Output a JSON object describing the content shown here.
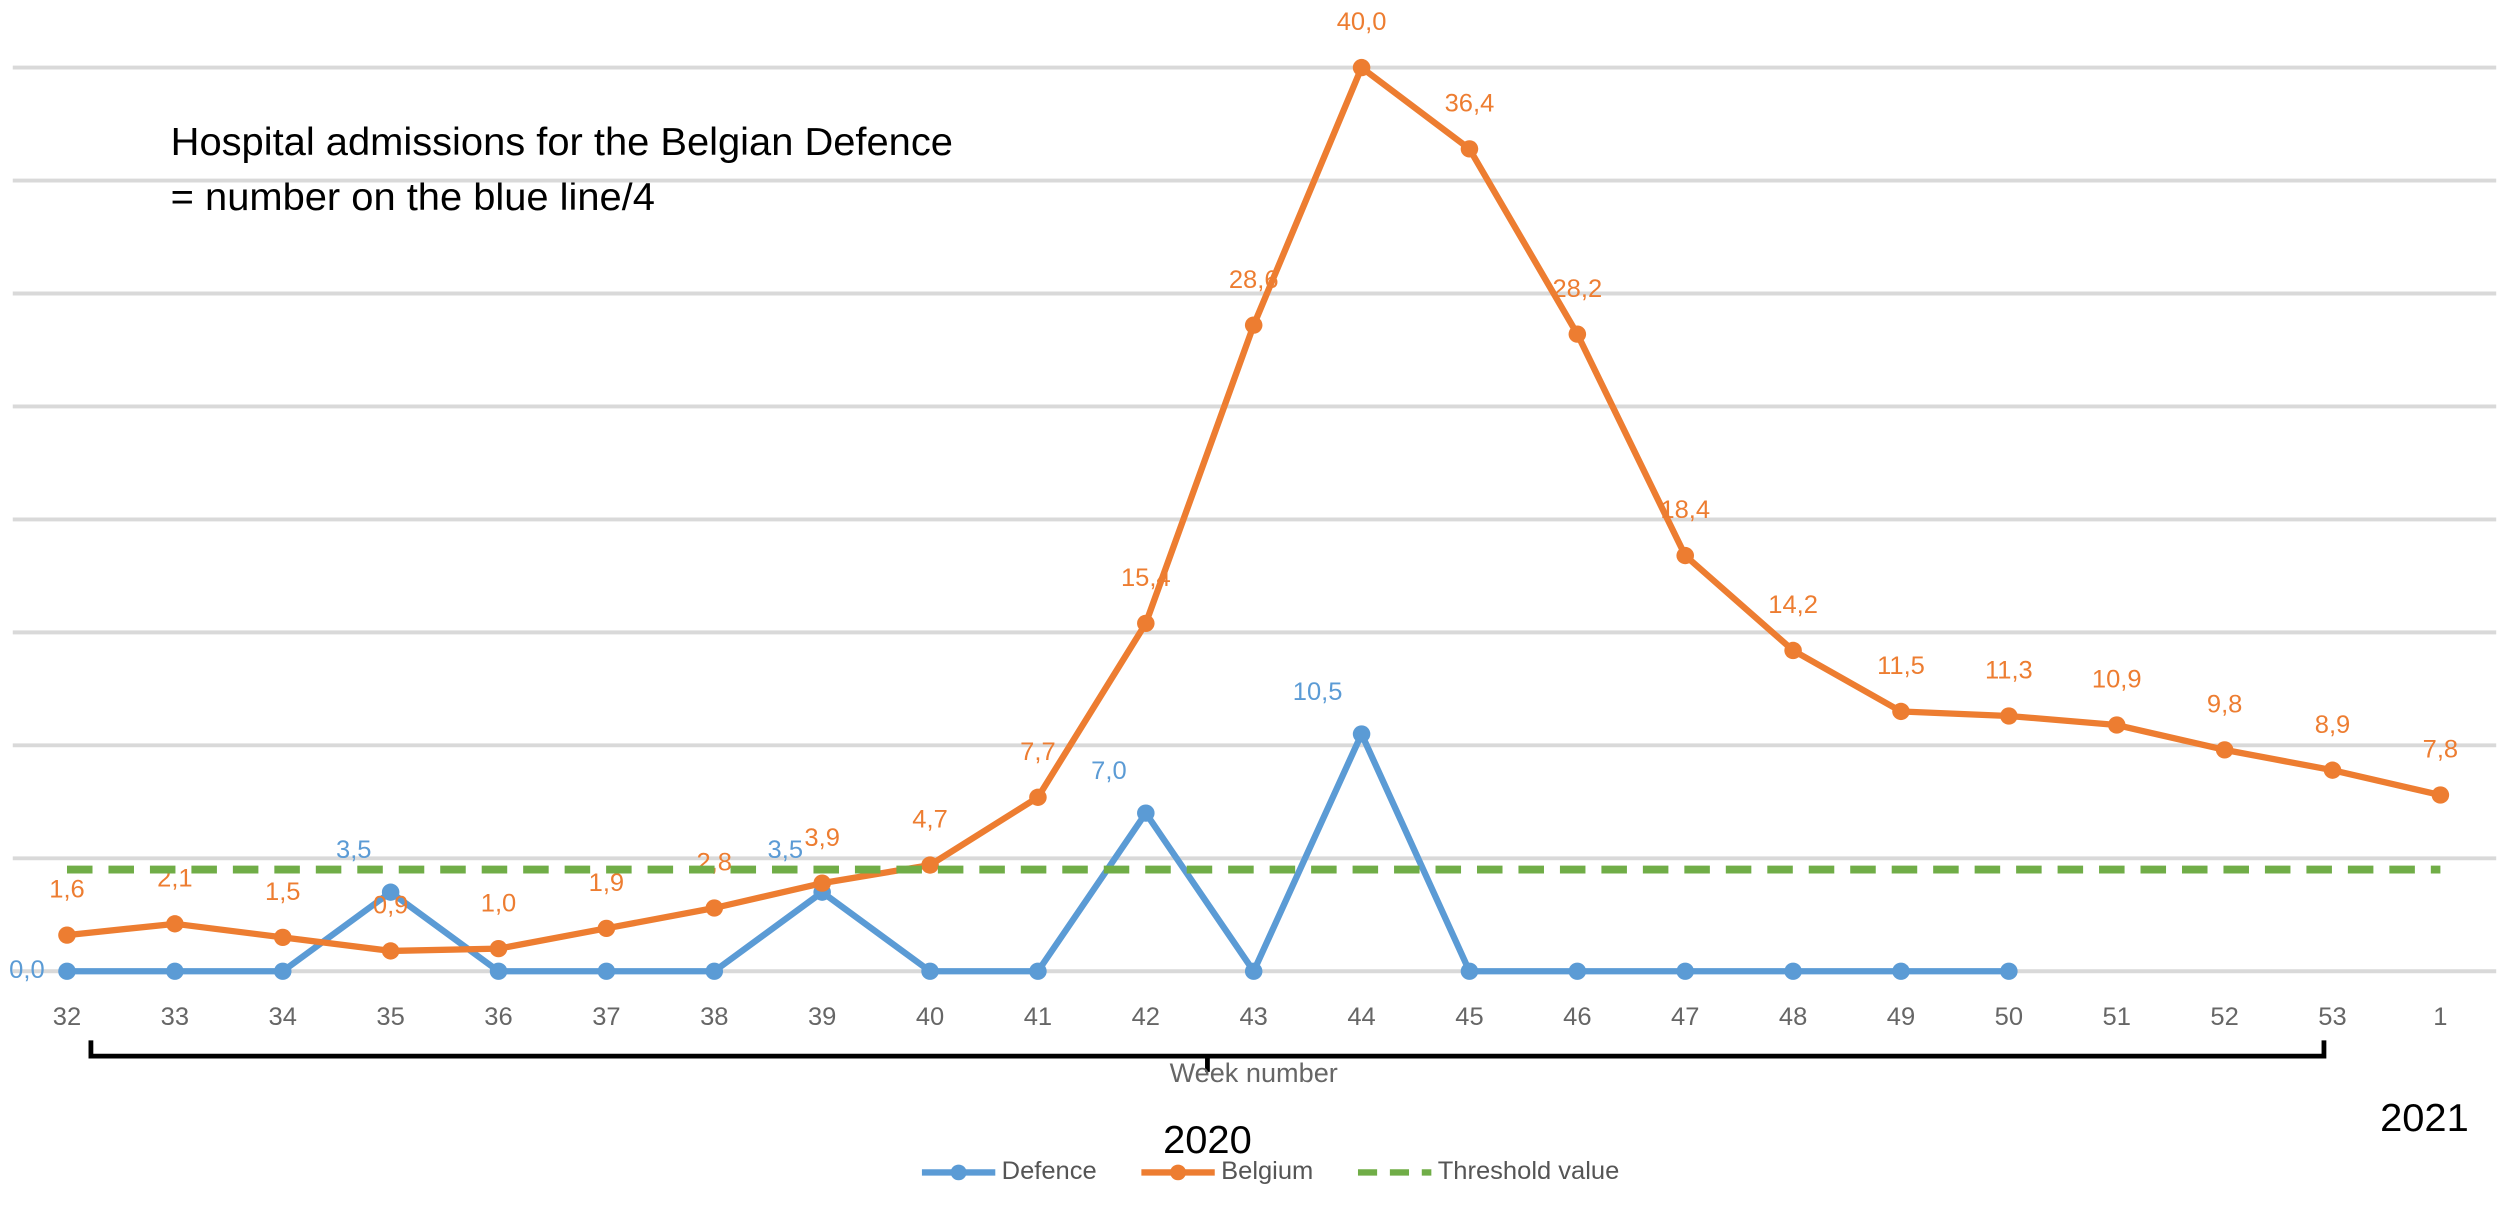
{
  "chart_data": {
    "type": "line",
    "annotations": [
      "Hospital admissions for the Belgian Defence",
      "= number on the blue line/4",
      "2020",
      "2021"
    ],
    "x_label": "Week number",
    "categories": [
      "32",
      "33",
      "34",
      "35",
      "36",
      "37",
      "38",
      "39",
      "40",
      "41",
      "42",
      "43",
      "44",
      "45",
      "46",
      "47",
      "48",
      "49",
      "50",
      "51",
      "52",
      "53",
      "1"
    ],
    "ylim": [
      0,
      40
    ],
    "yticks": [
      0,
      5,
      10,
      15,
      20,
      25,
      30,
      35,
      40
    ],
    "grid": true,
    "legend": "bottom",
    "series": [
      {
        "name": "Defence",
        "color": "#5b9bd5",
        "marker": true,
        "values": [
          0,
          0,
          0,
          3.5,
          0,
          0,
          0,
          3.5,
          0,
          0,
          7.0,
          0,
          10.5,
          0,
          0,
          0,
          0,
          0,
          0,
          null,
          null,
          null,
          null
        ],
        "value_labels": [
          "0,0",
          null,
          null,
          "3,5",
          null,
          null,
          null,
          "3,5",
          null,
          null,
          "7,0",
          null,
          "10,5",
          null,
          null,
          null,
          null,
          null,
          null,
          null,
          null,
          null,
          null
        ]
      },
      {
        "name": "Belgium",
        "color": "#ed7d31",
        "marker": true,
        "values": [
          1.6,
          2.1,
          1.5,
          0.9,
          1.0,
          1.9,
          2.8,
          3.9,
          4.7,
          7.7,
          15.4,
          28.6,
          40.0,
          36.4,
          28.2,
          18.4,
          14.2,
          11.5,
          11.3,
          10.9,
          9.8,
          8.9,
          7.8
        ],
        "value_labels": [
          "1,6",
          "2,1",
          "1,5",
          "0,9",
          "1,0",
          "1,9",
          "2,8",
          "3,9",
          "4,7",
          "7,7",
          "15,4",
          "28,6",
          "40,0",
          "36,4",
          "28,2",
          "18,4",
          "14,2",
          "11,5",
          "11,3",
          "10,9",
          "9,8",
          "8,9",
          "7,8"
        ]
      },
      {
        "name": "Threshold value",
        "color": "#70ad47",
        "marker": false,
        "dashed": true,
        "values": [
          4.5,
          4.5,
          4.5,
          4.5,
          4.5,
          4.5,
          4.5,
          4.5,
          4.5,
          4.5,
          4.5,
          4.5,
          4.5,
          4.5,
          4.5,
          4.5,
          4.5,
          4.5,
          4.5,
          4.5,
          4.5,
          4.5,
          4.5
        ]
      }
    ]
  }
}
